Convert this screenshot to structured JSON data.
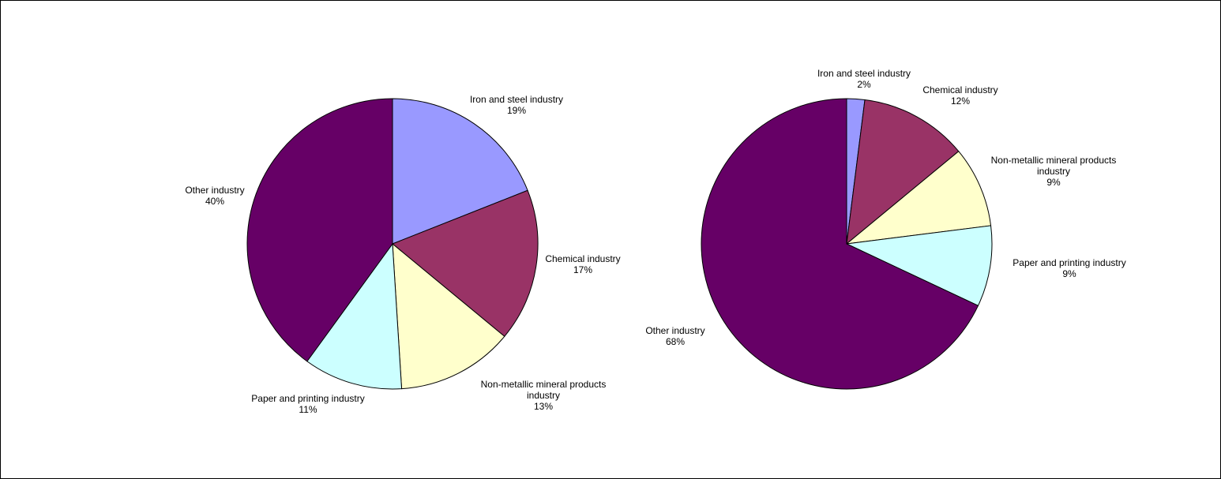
{
  "chart_data": [
    {
      "type": "pie",
      "title": "",
      "slices": [
        {
          "label": [
            "Iron and steel industry"
          ],
          "value": 19,
          "value_label": "19%",
          "color": "#9999FF"
        },
        {
          "label": [
            "Chemical industry"
          ],
          "value": 17,
          "value_label": "17%",
          "color": "#993366"
        },
        {
          "label": [
            "Non-metallic mineral products",
            "industry"
          ],
          "value": 13,
          "value_label": "13%",
          "color": "#FFFFCC"
        },
        {
          "label": [
            "Paper and printing industry"
          ],
          "value": 11,
          "value_label": "11%",
          "color": "#CCFFFF"
        },
        {
          "label": [
            "Other industry"
          ],
          "value": 40,
          "value_label": "40%",
          "color": "#660066"
        }
      ]
    },
    {
      "type": "pie",
      "title": "",
      "slices": [
        {
          "label": [
            "Iron and steel industry"
          ],
          "value": 2,
          "value_label": "2%",
          "color": "#9999FF"
        },
        {
          "label": [
            "Chemical industry"
          ],
          "value": 12,
          "value_label": "12%",
          "color": "#993366"
        },
        {
          "label": [
            "Non-metallic mineral products",
            "industry"
          ],
          "value": 9,
          "value_label": "9%",
          "color": "#FFFFCC"
        },
        {
          "label": [
            "Paper and printing industry"
          ],
          "value": 9,
          "value_label": "9%",
          "color": "#CCFFFF"
        },
        {
          "label": [
            "Other industry"
          ],
          "value": 68,
          "value_label": "68%",
          "color": "#660066"
        }
      ]
    }
  ]
}
